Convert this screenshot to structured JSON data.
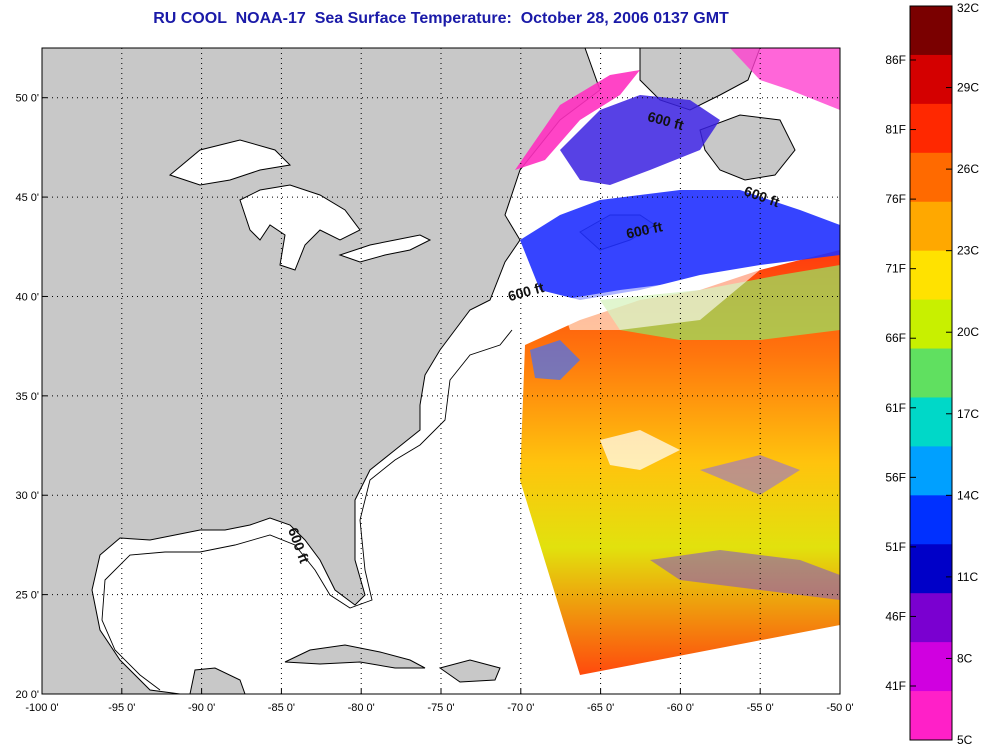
{
  "title": "RU COOL  NOAA-17  Sea Surface Temperature:  October 28, 2006 0137 GMT",
  "map": {
    "lon_range": [
      -100,
      -50
    ],
    "lat_range": [
      20,
      52.5
    ],
    "lon_ticks": [
      "-100 0'",
      "-95 0'",
      "-90 0'",
      "-85 0'",
      "-80 0'",
      "-75 0'",
      "-70 0'",
      "-65 0'",
      "-60 0'",
      "-55 0'",
      "-50 0'"
    ],
    "lat_ticks": [
      "20 0'",
      "25 0'",
      "30 0'",
      "35 0'",
      "40 0'",
      "45 0'",
      "50 0'"
    ],
    "land_color": "#c8c8c8",
    "grid": "dotted",
    "contour_labels": [
      {
        "text": "600 ft",
        "lon": -61,
        "lat": 48.6
      },
      {
        "text": "600 ft",
        "lon": -55,
        "lat": 44.8
      },
      {
        "text": "600 ft",
        "lon": -62.2,
        "lat": 43.1
      },
      {
        "text": "600 ft",
        "lon": -69.6,
        "lat": 40
      },
      {
        "text": "600 ft",
        "lon": -84.2,
        "lat": 27.4
      }
    ]
  },
  "colorbar": {
    "celsius_labels": [
      "32C",
      "29C",
      "26C",
      "23C",
      "20C",
      "17C",
      "14C",
      "11C",
      "8C",
      "5C"
    ],
    "fahrenheit_labels": [
      "86F",
      "81F",
      "76F",
      "71F",
      "66F",
      "61F",
      "56F",
      "51F",
      "46F",
      "41F"
    ],
    "colors": [
      "#7a0000",
      "#d40000",
      "#ff2800",
      "#ff6a00",
      "#ffa800",
      "#ffe200",
      "#c8f000",
      "#60e060",
      "#00d8c8",
      "#00a0ff",
      "#0030ff",
      "#0000c8",
      "#7a00d0",
      "#d000e0",
      "#ff20c8"
    ]
  }
}
